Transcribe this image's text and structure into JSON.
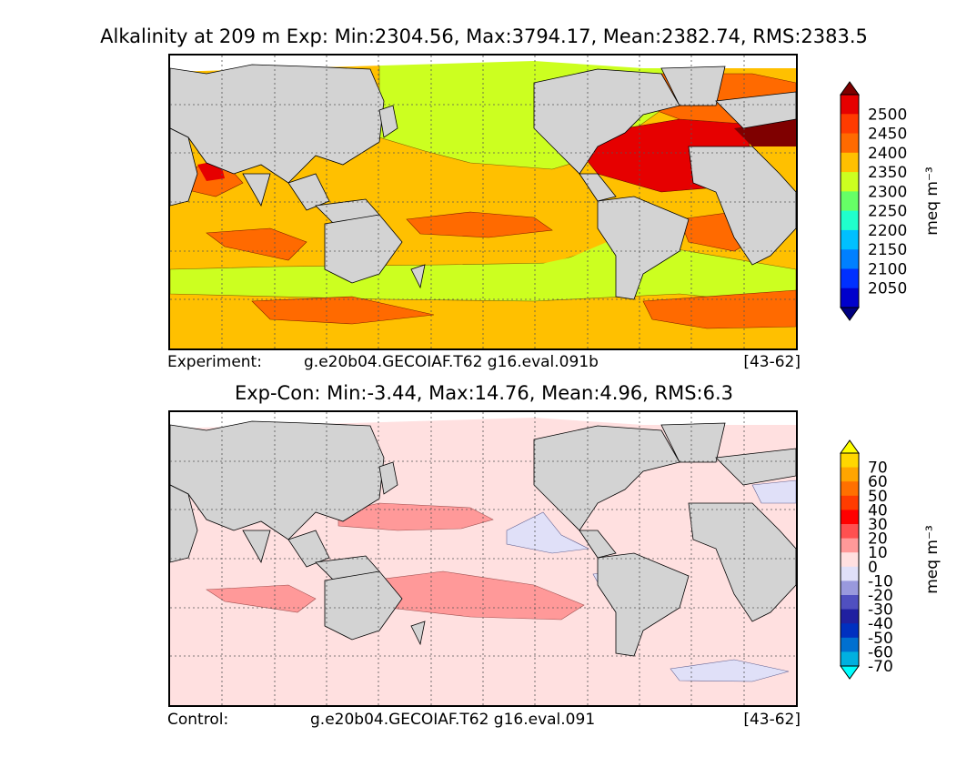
{
  "top": {
    "title": "Alkalinity at 209 m Exp: Min:2304.56, Max:3794.17, Mean:2382.74, RMS:2383.5",
    "caption": {
      "label": "Experiment:",
      "case": "g.e20b04.GECOIAF.T62 g16.eval.091b",
      "years": "[43-62]"
    },
    "colorbar": {
      "units": "meq m⁻³",
      "ticks": [
        "2500",
        "2450",
        "2400",
        "2350",
        "2300",
        "2250",
        "2200",
        "2150",
        "2100",
        "2050"
      ],
      "colors": [
        "#7f0000",
        "#e60000",
        "#ff3b00",
        "#ff6a00",
        "#ffc000",
        "#ccff20",
        "#66ff66",
        "#20ffcc",
        "#00c0ff",
        "#0080ff",
        "#0030ff",
        "#0000cc",
        "#000080"
      ]
    }
  },
  "bottom": {
    "title": "Exp-Con: Min:-3.44, Max:14.76, Mean:4.96, RMS:6.3",
    "caption": {
      "label": "Control:",
      "case": "g.e20b04.GECOIAF.T62 g16.eval.091",
      "years": "[43-62]"
    },
    "colorbar": {
      "units": "meq m⁻³",
      "ticks": [
        "70",
        "60",
        "50",
        "40",
        "30",
        "20",
        "10",
        "0",
        "-10",
        "-20",
        "-30",
        "-40",
        "-50",
        "-60",
        "-70"
      ],
      "colors": [
        "#ffff00",
        "#ffd700",
        "#ffa500",
        "#ff7000",
        "#ff3c00",
        "#ff0000",
        "#ff5050",
        "#ff9999",
        "#ffe0e0",
        "#e0e0f8",
        "#9999dd",
        "#5050c0",
        "#2020a0",
        "#0030c0",
        "#0070d0",
        "#00b0e0",
        "#00ffff"
      ]
    }
  },
  "map_colors": {
    "land": "#d3d3d3",
    "gridline": "#555555",
    "diff_background": "#ffe0e0"
  }
}
